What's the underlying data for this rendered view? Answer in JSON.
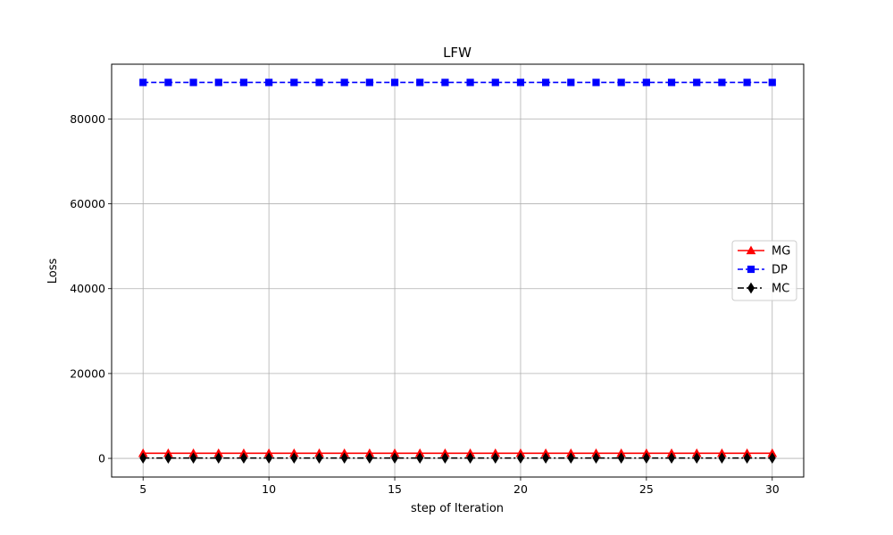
{
  "chart_data": {
    "type": "line",
    "title": "LFW",
    "xlabel": "step of Iteration",
    "ylabel": "Loss",
    "xlim": [
      3.75,
      31.25
    ],
    "ylim": [
      -4400,
      92900
    ],
    "xticks": [
      5,
      10,
      15,
      20,
      25,
      30
    ],
    "yticks": [
      0,
      20000,
      40000,
      60000,
      80000
    ],
    "grid": true,
    "legend_position": "center-right",
    "x": [
      5,
      6,
      7,
      8,
      9,
      10,
      11,
      12,
      13,
      14,
      15,
      16,
      17,
      18,
      19,
      20,
      21,
      22,
      23,
      24,
      25,
      26,
      27,
      28,
      29,
      30
    ],
    "series": [
      {
        "name": "MG",
        "color": "#ff0000",
        "linestyle": "solid",
        "marker": "triangle",
        "values": [
          1200,
          1200,
          1200,
          1200,
          1200,
          1200,
          1200,
          1200,
          1200,
          1200,
          1200,
          1200,
          1200,
          1200,
          1200,
          1200,
          1200,
          1200,
          1200,
          1200,
          1200,
          1200,
          1200,
          1200,
          1200,
          1200
        ]
      },
      {
        "name": "DP",
        "color": "#0000ff",
        "linestyle": "dashed",
        "marker": "square",
        "values": [
          88600,
          88600,
          88600,
          88600,
          88600,
          88600,
          88600,
          88600,
          88600,
          88600,
          88600,
          88600,
          88600,
          88600,
          88600,
          88600,
          88600,
          88600,
          88600,
          88600,
          88600,
          88600,
          88600,
          88600,
          88600,
          88600
        ]
      },
      {
        "name": "MC",
        "color": "#000000",
        "linestyle": "dashdot",
        "marker": "diamond",
        "values": [
          80,
          80,
          80,
          80,
          80,
          80,
          80,
          80,
          80,
          80,
          80,
          80,
          80,
          80,
          80,
          80,
          80,
          80,
          80,
          80,
          80,
          80,
          80,
          80,
          80,
          80
        ]
      }
    ]
  }
}
